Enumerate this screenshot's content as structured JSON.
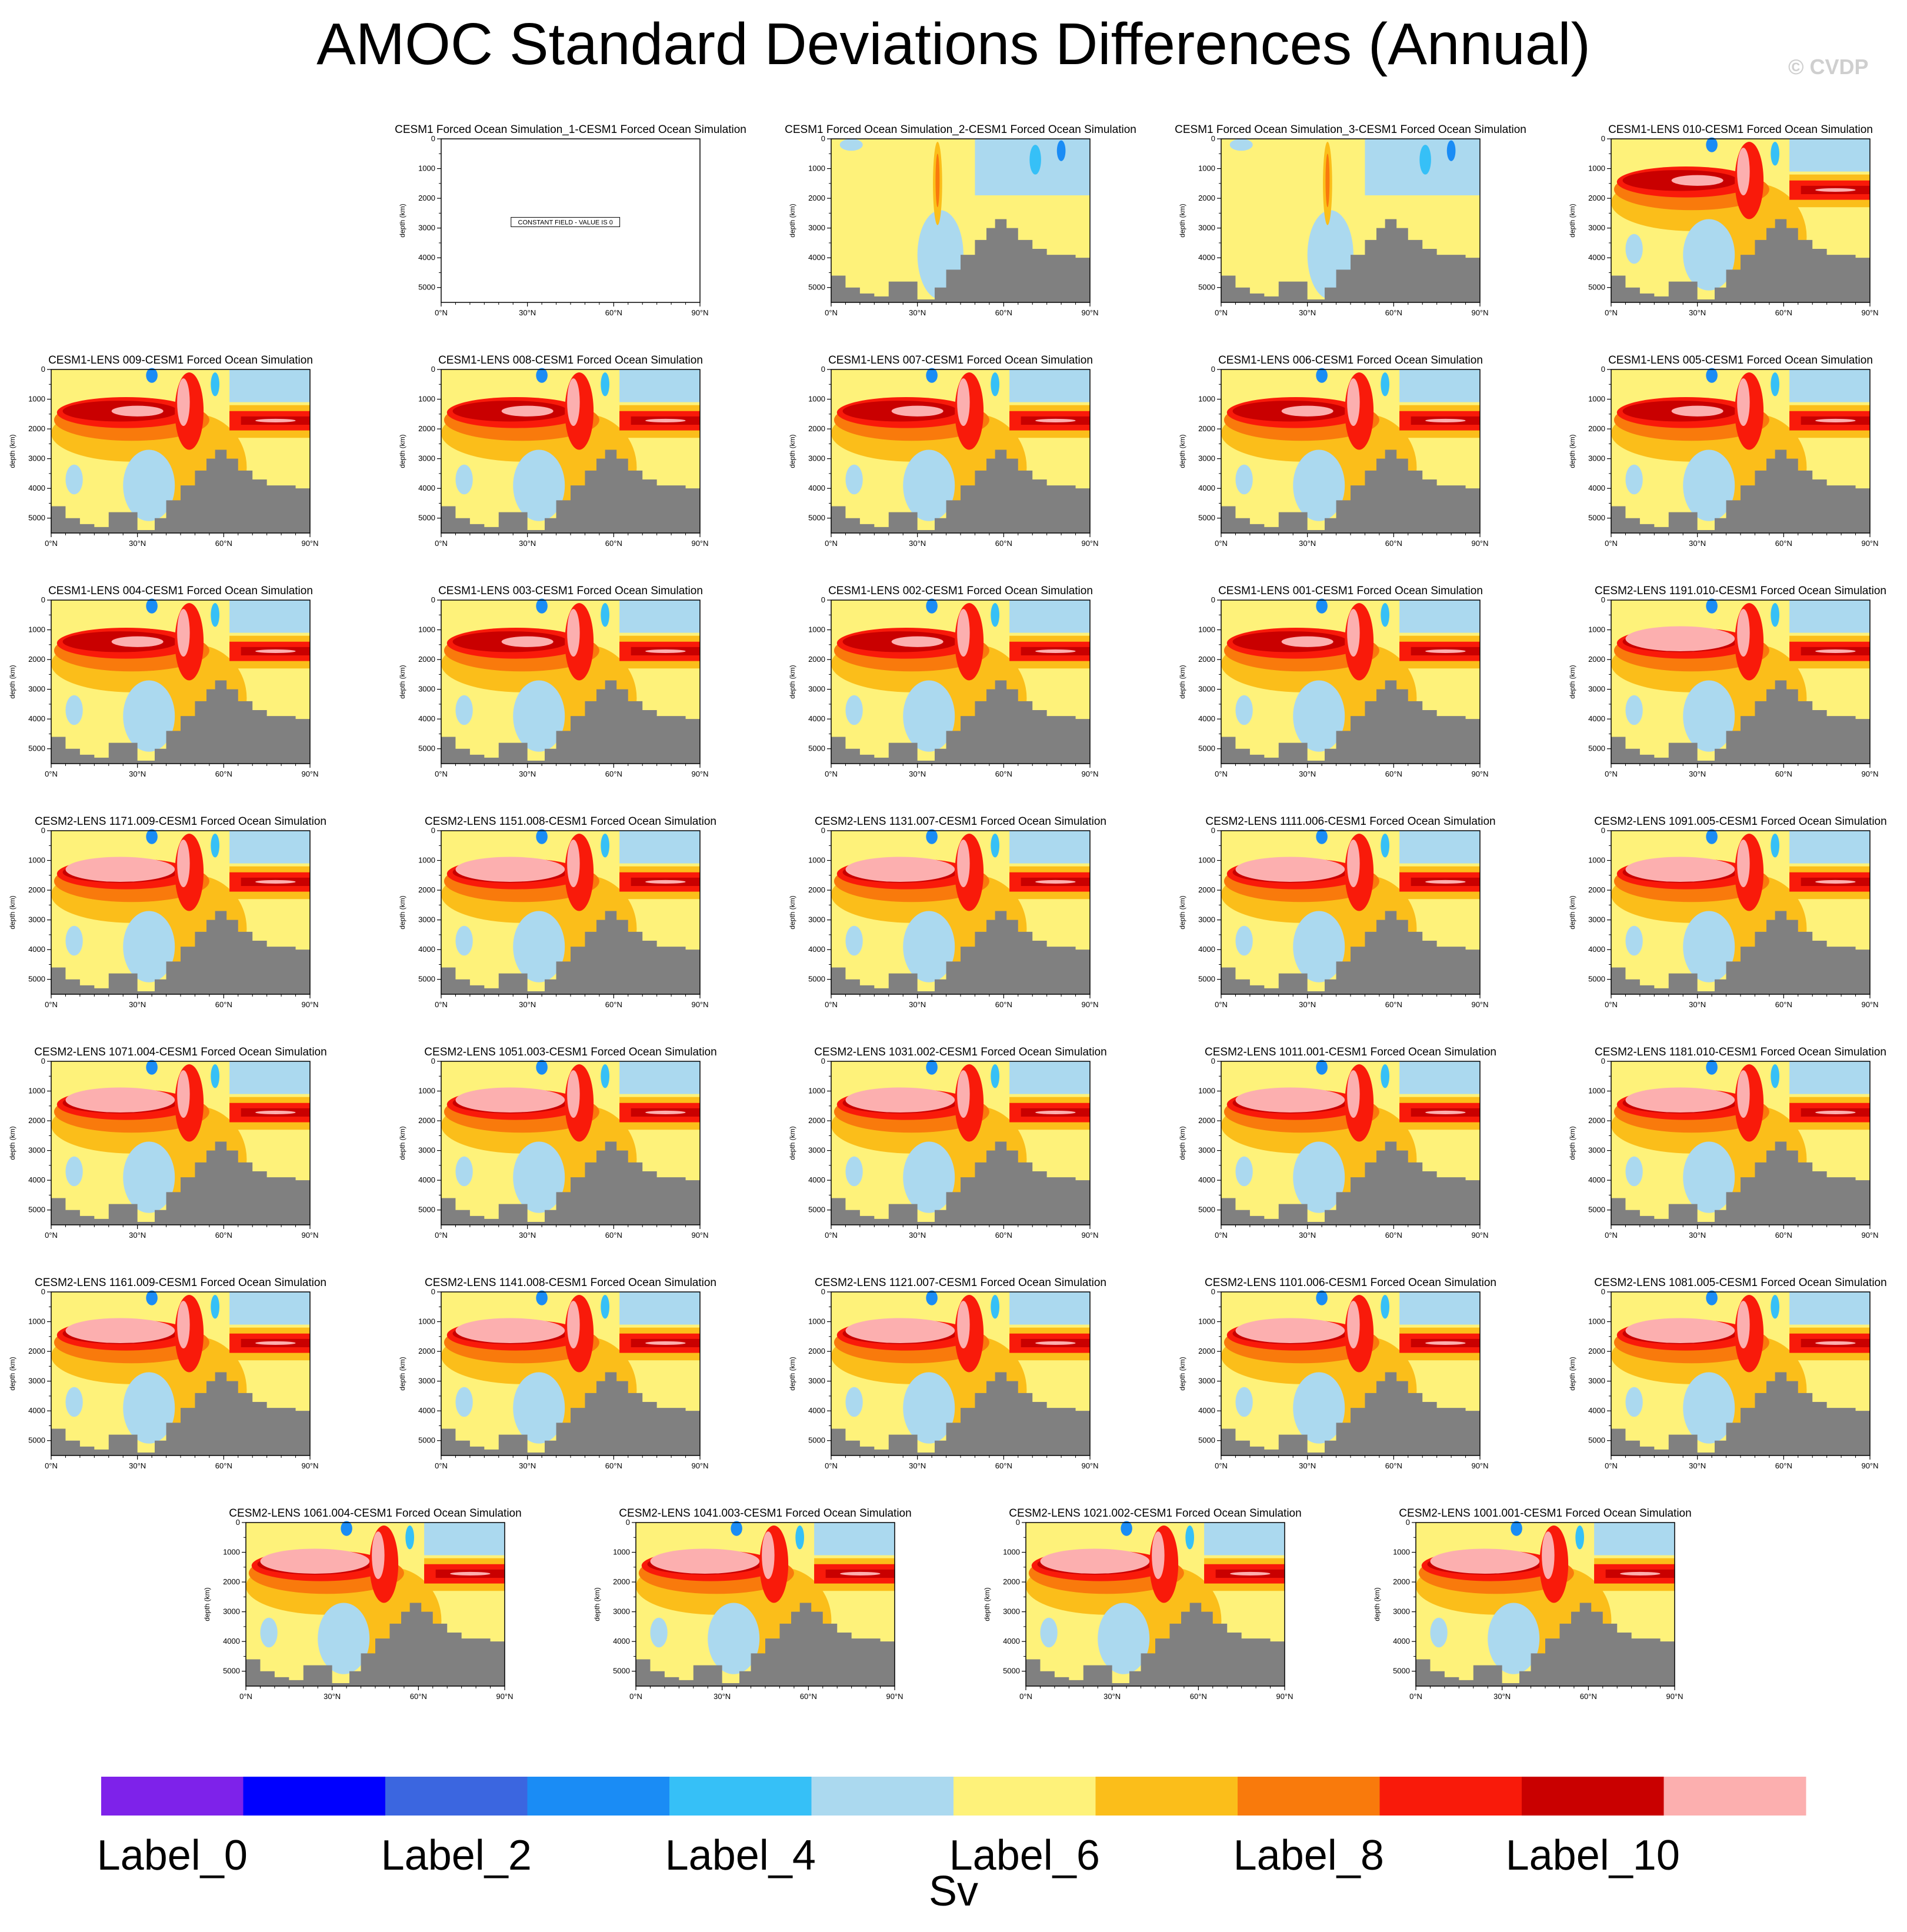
{
  "title": "AMOC Standard Deviations Differences (Annual)",
  "watermark": "© CVDP",
  "colorbar": {
    "units": "Sv",
    "colors": [
      "#7e22ea",
      "#0000ff",
      "#3b66e0",
      "#1a8cf5",
      "#36c0f7",
      "#abd9ef",
      "#fef27a",
      "#fbbe1a",
      "#f97a0c",
      "#f91a0a",
      "#c90000",
      "#fcafaf"
    ],
    "labels": [
      "Label_0",
      "Label_2",
      "Label_4",
      "Label_6",
      "Label_8",
      "Label_10"
    ]
  },
  "chart_data": {
    "type": "contour-panels",
    "variable": "AMOC standard deviation difference",
    "units": "Sv",
    "x_ticks": [
      "0°N",
      "30°N",
      "60°N",
      "90°N"
    ],
    "y_ticks": [
      "0",
      "1000",
      "2000",
      "3000",
      "4000",
      "5000"
    ],
    "ylabel": "depth (km)",
    "constant_field_note": "CONSTANT FIELD - VALUE IS 0",
    "panels": [
      {
        "title": "CESM1 Forced Ocean Simulation_1-CESM1 Forced Ocean Simulation",
        "pattern": "constant"
      },
      {
        "title": "CESM1 Forced Ocean Simulation_2-CESM1 Forced Ocean Simulation",
        "pattern": "weak"
      },
      {
        "title": "CESM1 Forced Ocean Simulation_3-CESM1 Forced Ocean Simulation",
        "pattern": "weak"
      },
      {
        "title": "CESM1-LENS 010-CESM1 Forced Ocean Simulation",
        "pattern": "cesm1"
      },
      {
        "title": "CESM1-LENS 009-CESM1 Forced Ocean Simulation",
        "pattern": "cesm1"
      },
      {
        "title": "CESM1-LENS 008-CESM1 Forced Ocean Simulation",
        "pattern": "cesm1"
      },
      {
        "title": "CESM1-LENS 007-CESM1 Forced Ocean Simulation",
        "pattern": "cesm1"
      },
      {
        "title": "CESM1-LENS 006-CESM1 Forced Ocean Simulation",
        "pattern": "cesm1"
      },
      {
        "title": "CESM1-LENS 005-CESM1 Forced Ocean Simulation",
        "pattern": "cesm1"
      },
      {
        "title": "CESM1-LENS 004-CESM1 Forced Ocean Simulation",
        "pattern": "cesm1"
      },
      {
        "title": "CESM1-LENS 003-CESM1 Forced Ocean Simulation",
        "pattern": "cesm1"
      },
      {
        "title": "CESM1-LENS 002-CESM1 Forced Ocean Simulation",
        "pattern": "cesm1"
      },
      {
        "title": "CESM1-LENS 001-CESM1 Forced Ocean Simulation",
        "pattern": "cesm1"
      },
      {
        "title": "CESM2-LENS 1191.010-CESM1 Forced Ocean Simulation",
        "pattern": "cesm2"
      },
      {
        "title": "CESM2-LENS 1171.009-CESM1 Forced Ocean Simulation",
        "pattern": "cesm2"
      },
      {
        "title": "CESM2-LENS 1151.008-CESM1 Forced Ocean Simulation",
        "pattern": "cesm2"
      },
      {
        "title": "CESM2-LENS 1131.007-CESM1 Forced Ocean Simulation",
        "pattern": "cesm2"
      },
      {
        "title": "CESM2-LENS 1111.006-CESM1 Forced Ocean Simulation",
        "pattern": "cesm2"
      },
      {
        "title": "CESM2-LENS 1091.005-CESM1 Forced Ocean Simulation",
        "pattern": "cesm2"
      },
      {
        "title": "CESM2-LENS 1071.004-CESM1 Forced Ocean Simulation",
        "pattern": "cesm2"
      },
      {
        "title": "CESM2-LENS 1051.003-CESM1 Forced Ocean Simulation",
        "pattern": "cesm2"
      },
      {
        "title": "CESM2-LENS 1031.002-CESM1 Forced Ocean Simulation",
        "pattern": "cesm2"
      },
      {
        "title": "CESM2-LENS 1011.001-CESM1 Forced Ocean Simulation",
        "pattern": "cesm2"
      },
      {
        "title": "CESM2-LENS 1181.010-CESM1 Forced Ocean Simulation",
        "pattern": "cesm2"
      },
      {
        "title": "CESM2-LENS 1161.009-CESM1 Forced Ocean Simulation",
        "pattern": "cesm2"
      },
      {
        "title": "CESM2-LENS 1141.008-CESM1 Forced Ocean Simulation",
        "pattern": "cesm2"
      },
      {
        "title": "CESM2-LENS 1121.007-CESM1 Forced Ocean Simulation",
        "pattern": "cesm2"
      },
      {
        "title": "CESM2-LENS 1101.006-CESM1 Forced Ocean Simulation",
        "pattern": "cesm2"
      },
      {
        "title": "CESM2-LENS 1081.005-CESM1 Forced Ocean Simulation",
        "pattern": "cesm2"
      },
      {
        "title": "CESM2-LENS 1061.004-CESM1 Forced Ocean Simulation",
        "pattern": "cesm2"
      },
      {
        "title": "CESM2-LENS 1041.003-CESM1 Forced Ocean Simulation",
        "pattern": "cesm2"
      },
      {
        "title": "CESM2-LENS 1021.002-CESM1 Forced Ocean Simulation",
        "pattern": "cesm2"
      },
      {
        "title": "CESM2-LENS 1001.001-CESM1 Forced Ocean Simulation",
        "pattern": "cesm2"
      }
    ]
  }
}
